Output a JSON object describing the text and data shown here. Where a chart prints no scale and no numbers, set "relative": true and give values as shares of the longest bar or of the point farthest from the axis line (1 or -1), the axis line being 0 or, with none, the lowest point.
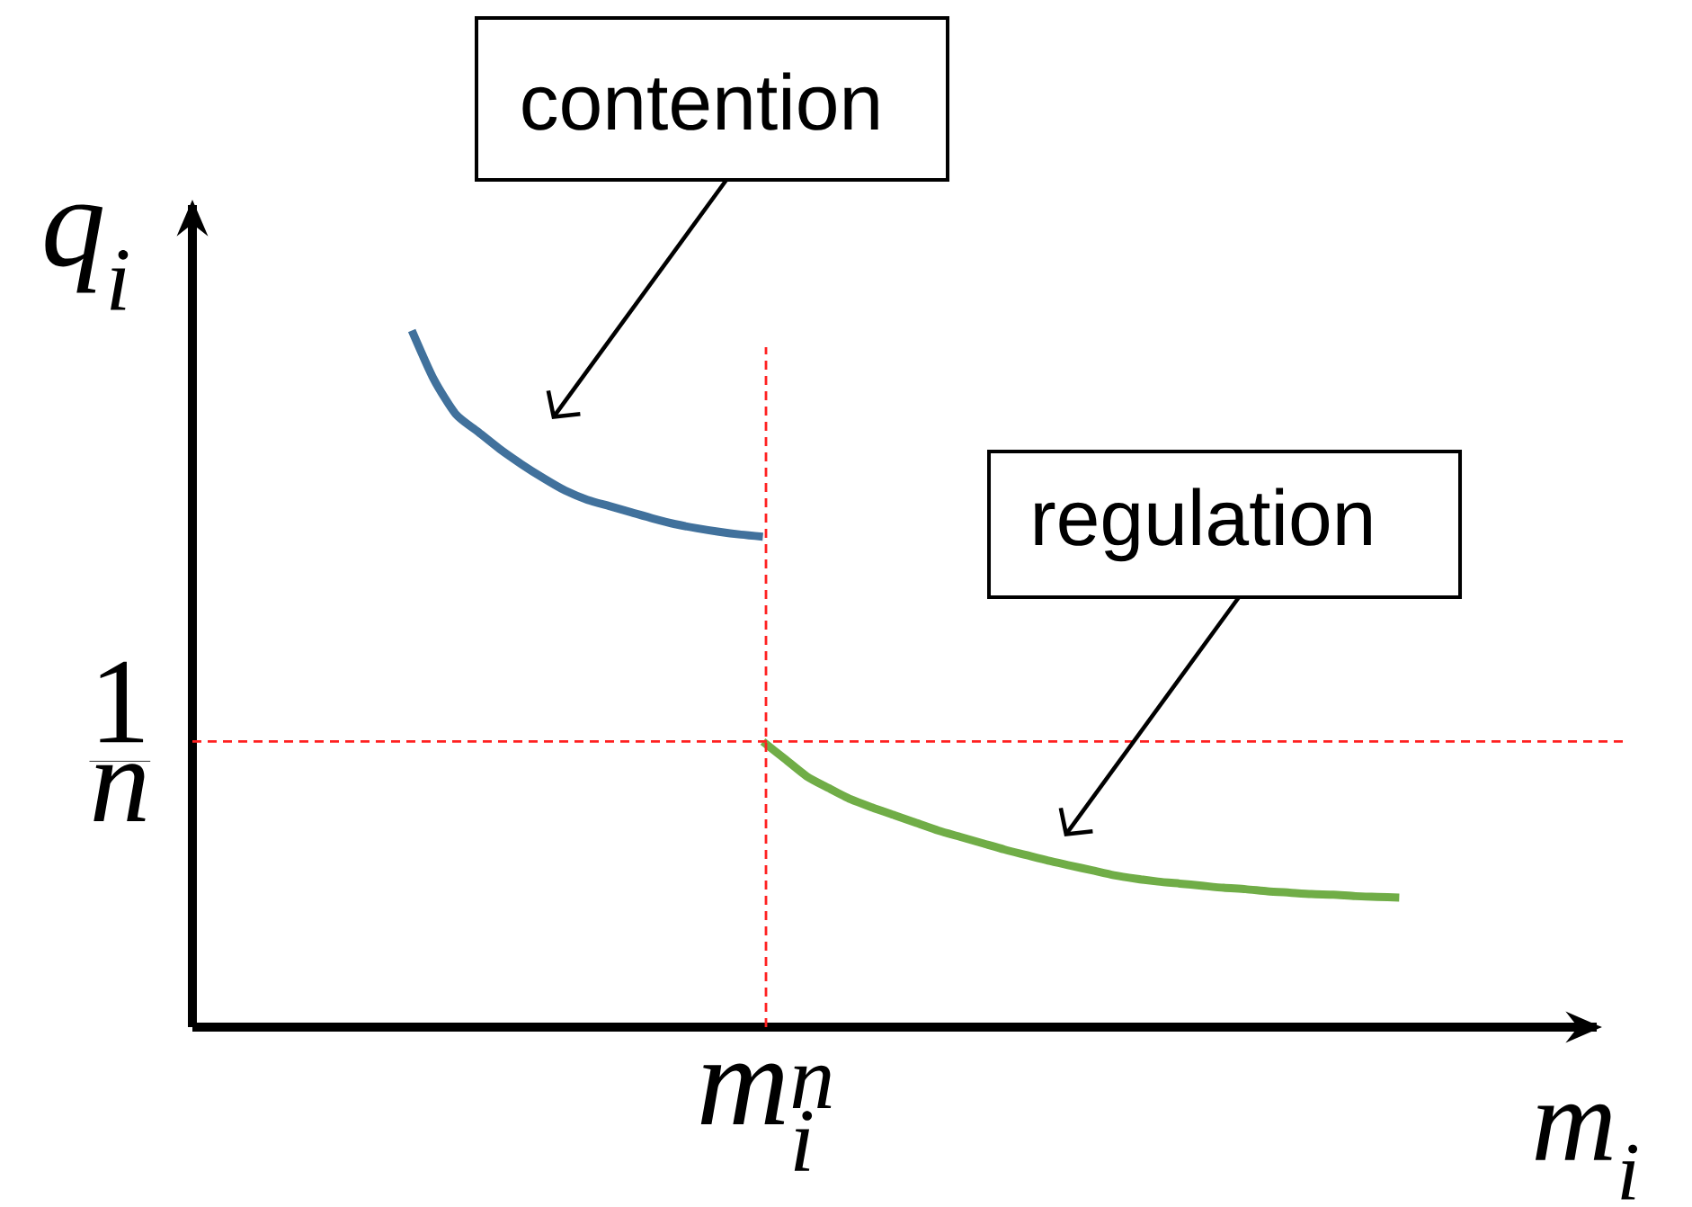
{
  "chart_data": {
    "type": "line",
    "relative": true,
    "xlabel": "m_i",
    "ylabel": "q_i",
    "categories": [
      null,
      null,
      null,
      null,
      null,
      null,
      null,
      null,
      null,
      null,
      null,
      null,
      null,
      null,
      null,
      null,
      null,
      null,
      null,
      null,
      null,
      null,
      null,
      null,
      null,
      null,
      null,
      null,
      null,
      null,
      null,
      null,
      null,
      null,
      null,
      null,
      null,
      null,
      null,
      null,
      null,
      null,
      null,
      null,
      null,
      null,
      null,
      null,
      null,
      null,
      null,
      null,
      null,
      null,
      null,
      null,
      null,
      null,
      null,
      null,
      null,
      null,
      null,
      null,
      null
    ],
    "series": [
      {
        "color": "#41719c",
        "values": [
          null,
          null,
          null,
          null,
          null,
          null,
          null,
          null,
          null,
          null,
          1.0,
          0.93,
          0.88,
          0.855,
          0.83,
          0.808,
          0.788,
          0.77,
          0.757,
          0.748,
          0.739,
          0.73,
          0.722,
          0.716,
          0.711,
          0.707,
          0.704,
          null,
          null,
          null,
          null,
          null,
          null,
          null,
          null,
          null,
          null,
          null,
          null,
          null,
          null,
          null,
          null,
          null,
          null,
          null,
          null,
          null,
          null,
          null,
          null,
          null,
          null,
          null,
          null,
          null,
          null,
          null,
          null,
          null,
          null,
          null,
          null,
          null,
          null
        ]
      },
      {
        "color": "#70ad47",
        "values": [
          null,
          null,
          null,
          null,
          null,
          null,
          null,
          null,
          null,
          null,
          null,
          null,
          null,
          null,
          null,
          null,
          null,
          null,
          null,
          null,
          null,
          null,
          null,
          null,
          null,
          null,
          0.41,
          0.385,
          0.36,
          0.343,
          0.327,
          0.315,
          0.304,
          0.293,
          0.282,
          0.273,
          0.264,
          0.255,
          0.247,
          0.239,
          0.232,
          0.225,
          0.218,
          0.213,
          0.209,
          0.206,
          0.203,
          0.2,
          0.198,
          0.195,
          0.193,
          0.191,
          0.19,
          0.188,
          0.187,
          0.186,
          null,
          null,
          null,
          null,
          null,
          null,
          null,
          null,
          null
        ]
      }
    ],
    "ref_lines": [
      {
        "axis": "y",
        "value": 0.41,
        "label": "\\frac{1}{n}",
        "color": "#ff2020",
        "line_style": "dashed"
      }
    ],
    "annotations": [
      "contention",
      "regulation",
      "m_i^n"
    ]
  }
}
